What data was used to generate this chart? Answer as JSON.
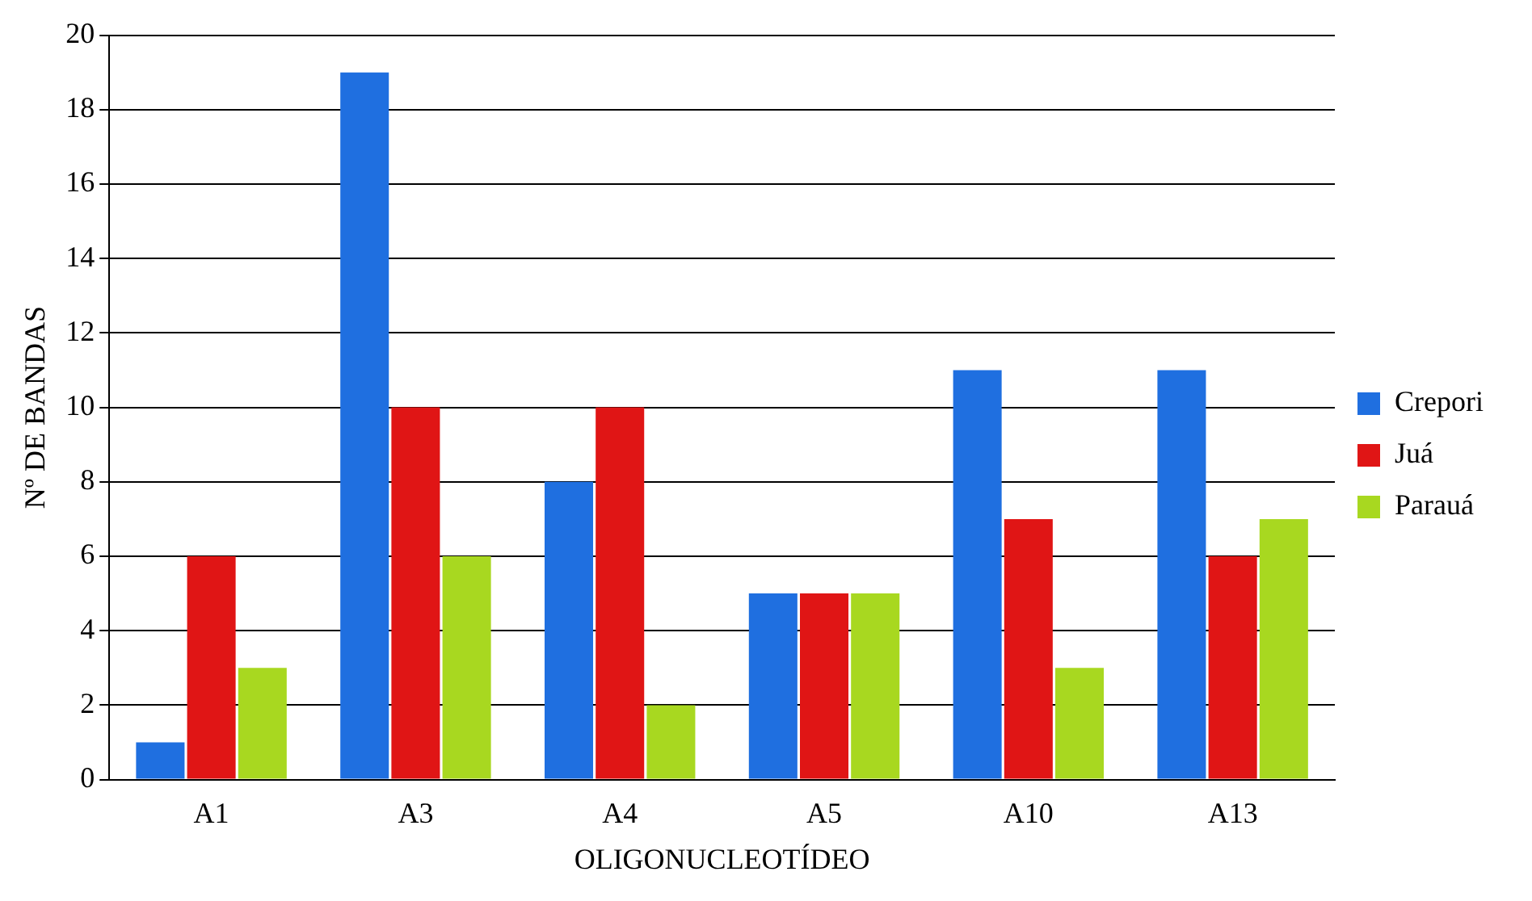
{
  "chart_data": {
    "type": "bar",
    "xlabel": "OLIGONUCLEOTÍDEO",
    "ylabel": "Nº DE BANDAS",
    "categories": [
      "A1",
      "A3",
      "A4",
      "A5",
      "A10",
      "A13"
    ],
    "series": [
      {
        "name": "Crepori",
        "color": "#1f6fe0",
        "values": [
          1,
          19,
          8,
          5,
          11,
          11
        ]
      },
      {
        "name": "Juá",
        "color": "#e01515",
        "values": [
          6,
          10,
          10,
          5,
          7,
          6
        ]
      },
      {
        "name": "Parauá",
        "color": "#a8d820",
        "values": [
          3,
          6,
          2,
          5,
          3,
          7
        ]
      }
    ],
    "ylim": [
      0,
      20
    ],
    "yticks": [
      0,
      2,
      4,
      6,
      8,
      10,
      12,
      14,
      16,
      18,
      20
    ],
    "grid": "y",
    "legend": "right"
  }
}
